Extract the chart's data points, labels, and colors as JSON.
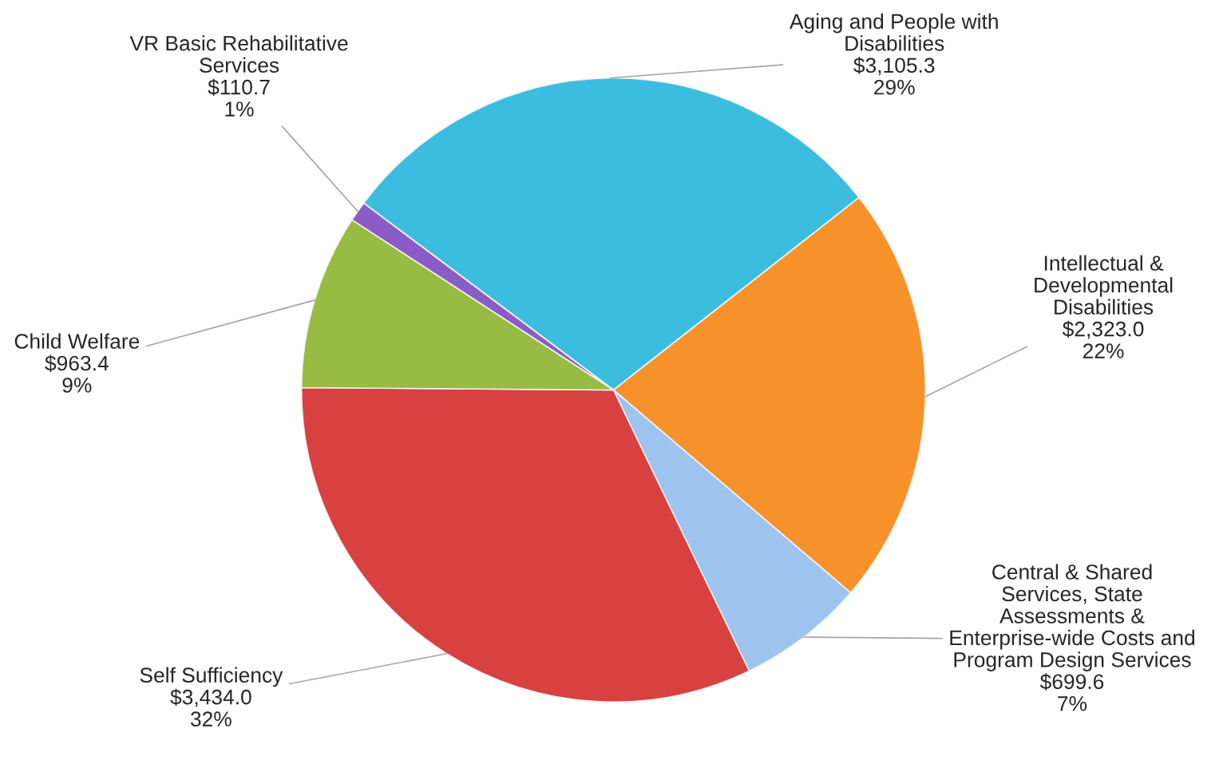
{
  "chart_data": {
    "type": "pie",
    "categories": [
      "Aging and People with\nDisabilities",
      "Intellectual &\nDevelopmental\nDisabilities",
      "Central & Shared\nServices, State\nAssessments &\nEnterprise-wide Costs and\nProgram Design Services",
      "Self Sufficiency",
      "Child Welfare",
      "VR Basic Rehabilitative\nServices"
    ],
    "values": [
      3105.3,
      2323.0,
      699.6,
      3434.0,
      963.4,
      110.7
    ],
    "colors": [
      "#3bbde0",
      "#f7922a",
      "#9dc3ef",
      "#d94040",
      "#97bb43",
      "#8b5cc7"
    ],
    "value_labels": [
      "$3,105.3\n29%",
      "$2,323.0\n22%",
      "$699.6\n7%",
      "$3,434.0\n32%",
      "$963.4\n9%",
      "$110.7\n1%"
    ]
  }
}
